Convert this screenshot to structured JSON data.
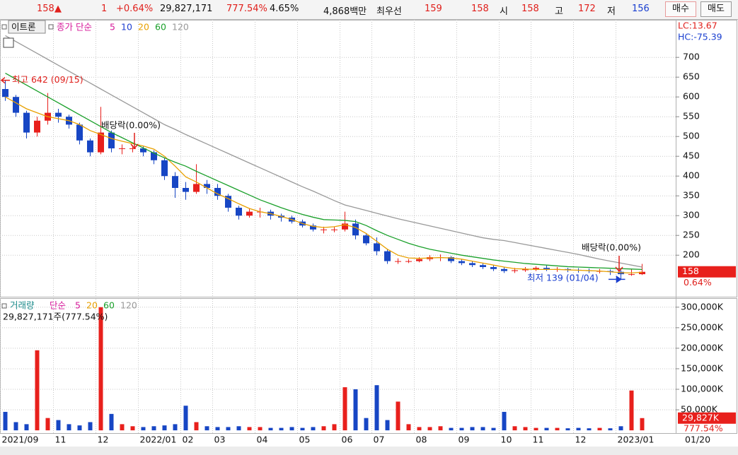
{
  "header": {
    "price": "158",
    "arrow": "▲",
    "change": "1",
    "change_pct": "+0.64%",
    "volume": "29,827,171",
    "volume_ratio": "777.54%",
    "turnover": "4.65%",
    "amount": "4,868백만",
    "best_label": "최우선",
    "best_ask": "159",
    "best_bid": "158",
    "open_label": "시",
    "open": "158",
    "high_label": "고",
    "high": "172",
    "low_label": "저",
    "low": "156",
    "buy": "매수",
    "sell": "매도"
  },
  "chart_data": [
    {
      "type": "candlestick",
      "stock_name": "이트론",
      "legend_label": "종가 단순",
      "up_color": "#e8201c",
      "down_color": "#1746c4",
      "open": [
        620,
        600,
        560,
        510,
        540,
        560,
        550,
        530,
        490,
        460,
        510,
        470,
        470,
        470,
        460,
        440,
        400,
        370,
        360,
        380,
        370,
        350,
        320,
        300,
        310,
        310,
        300,
        295,
        285,
        275,
        265,
        265,
        265,
        280,
        250,
        230,
        210,
        185,
        185,
        185,
        190,
        195,
        195,
        185,
        180,
        175,
        170,
        165,
        160,
        162,
        165,
        168,
        165,
        165,
        163,
        162,
        160,
        160,
        158,
        152,
        152
      ],
      "high": [
        642,
        605,
        565,
        550,
        610,
        570,
        555,
        535,
        495,
        575,
        515,
        480,
        478,
        475,
        465,
        445,
        410,
        385,
        430,
        390,
        380,
        355,
        325,
        318,
        320,
        315,
        305,
        300,
        290,
        280,
        272,
        272,
        310,
        290,
        255,
        245,
        215,
        192,
        190,
        195,
        200,
        202,
        198,
        190,
        185,
        180,
        175,
        170,
        168,
        170,
        172,
        174,
        170,
        168,
        167,
        166,
        165,
        164,
        162,
        165,
        178
      ],
      "low": [
        590,
        550,
        495,
        500,
        530,
        535,
        520,
        480,
        450,
        455,
        460,
        455,
        460,
        450,
        430,
        390,
        345,
        340,
        355,
        355,
        340,
        310,
        290,
        295,
        295,
        290,
        285,
        280,
        270,
        260,
        255,
        258,
        260,
        240,
        225,
        200,
        178,
        178,
        180,
        182,
        185,
        185,
        180,
        175,
        170,
        165,
        160,
        155,
        155,
        158,
        160,
        160,
        158,
        157,
        156,
        155,
        154,
        150,
        139,
        148,
        150
      ],
      "close": [
        600,
        560,
        510,
        540,
        560,
        550,
        530,
        490,
        460,
        510,
        470,
        470,
        470,
        460,
        440,
        400,
        370,
        360,
        380,
        370,
        350,
        320,
        300,
        310,
        310,
        300,
        295,
        285,
        275,
        265,
        265,
        265,
        280,
        250,
        230,
        210,
        185,
        185,
        185,
        190,
        195,
        195,
        185,
        180,
        175,
        170,
        165,
        160,
        162,
        165,
        168,
        165,
        165,
        163,
        162,
        160,
        160,
        158,
        152,
        152,
        158
      ],
      "series": [
        {
          "name": "5",
          "color": "#d6199a"
        },
        {
          "name": "10",
          "color": "#1f3fd0"
        },
        {
          "name": "20",
          "color": "#e8a000",
          "values": [
            600,
            585,
            570,
            560,
            550,
            545,
            540,
            530,
            515,
            505,
            495,
            488,
            482,
            476,
            468,
            450,
            425,
            398,
            385,
            370,
            355,
            343,
            330,
            318,
            310,
            305,
            298,
            290,
            280,
            273,
            270,
            272,
            277,
            270,
            255,
            235,
            215,
            200,
            193,
            192,
            193,
            194,
            193,
            190,
            185,
            180,
            175,
            170,
            166,
            165,
            164,
            164,
            164,
            163,
            162,
            161,
            160,
            158,
            156,
            155,
            157
          ]
        },
        {
          "name": "60",
          "color": "#1aa02a",
          "values": [
            660,
            645,
            630,
            615,
            600,
            585,
            570,
            555,
            540,
            525,
            510,
            497,
            484,
            471,
            458,
            446,
            435,
            425,
            412,
            400,
            388,
            376,
            364,
            352,
            340,
            330,
            320,
            311,
            303,
            296,
            290,
            289,
            288,
            285,
            275,
            262,
            250,
            240,
            230,
            222,
            215,
            210,
            205,
            200,
            196,
            192,
            188,
            185,
            182,
            179,
            177,
            175,
            173,
            171,
            170,
            169,
            168,
            167,
            166,
            165,
            164
          ]
        },
        {
          "name": "120",
          "color": "#999999",
          "values": [
            755,
            740,
            725,
            710,
            695,
            680,
            665,
            650,
            635,
            620,
            605,
            590,
            575,
            560,
            545,
            530,
            518,
            505,
            493,
            481,
            469,
            457,
            445,
            433,
            421,
            409,
            397,
            385,
            373,
            362,
            350,
            338,
            327,
            320,
            313,
            306,
            299,
            292,
            286,
            280,
            274,
            268,
            262,
            256,
            250,
            244,
            240,
            237,
            232,
            227,
            222,
            217,
            212,
            207,
            202,
            196,
            190,
            185,
            180,
            175,
            170
          ]
        }
      ],
      "ylim": [
        95,
        795
      ],
      "yticks": [
        200,
        250,
        300,
        350,
        400,
        450,
        500,
        550,
        600,
        650,
        700
      ],
      "grid": true,
      "lc_label": "LC:13.67",
      "hc_label": "HC:-75.39",
      "annotations": [
        "최고 642 (09/15)",
        "배당락(0.00%)",
        "배당락(0.00%)",
        "최저 139 (01/04)"
      ],
      "last_price": "158",
      "last_change": "0.64%"
    },
    {
      "type": "bar",
      "legend_label": "거래량",
      "legend_sub": "단순",
      "series": [
        {
          "name": "5",
          "color": "#d6199a"
        },
        {
          "name": "20",
          "color": "#e8a000"
        },
        {
          "name": "60",
          "color": "#1aa02a"
        },
        {
          "name": "120",
          "color": "#999999"
        }
      ],
      "values": [
        45000,
        20000,
        15000,
        195000,
        30000,
        25000,
        15000,
        12000,
        20000,
        300000,
        40000,
        15000,
        10000,
        8000,
        10000,
        12000,
        15000,
        60000,
        20000,
        10000,
        8000,
        8000,
        10000,
        8000,
        8000,
        6000,
        6000,
        8000,
        6000,
        8000,
        10000,
        15000,
        105000,
        100000,
        30000,
        110000,
        25000,
        70000,
        15000,
        8000,
        8000,
        10000,
        6000,
        6000,
        8000,
        8000,
        6000,
        45000,
        10000,
        8000,
        6000,
        6000,
        6000,
        5000,
        6000,
        5000,
        6000,
        5000,
        10000,
        97000,
        29827
      ],
      "categories": [
        "2021/09",
        null,
        null,
        null,
        null,
        "11",
        null,
        null,
        null,
        "12",
        null,
        null,
        null,
        "2022/01",
        null,
        null,
        null,
        "02",
        null,
        null,
        "03",
        null,
        null,
        null,
        "04",
        null,
        null,
        null,
        "05",
        null,
        null,
        null,
        "06",
        null,
        null,
        "07",
        null,
        null,
        null,
        "08",
        null,
        null,
        null,
        "09",
        null,
        null,
        null,
        "10",
        null,
        null,
        "11",
        null,
        null,
        null,
        "12",
        null,
        null,
        null,
        "2023/01",
        null,
        null
      ],
      "x_last_label": "01/20",
      "ylim": [
        -5000,
        322000
      ],
      "yticks": [
        {
          "value": 50000,
          "label": "50,000K"
        },
        {
          "value": 100000,
          "label": "100,000K"
        },
        {
          "value": 150000,
          "label": "150,000K"
        },
        {
          "value": 200000,
          "label": "200,000K"
        },
        {
          "value": 250000,
          "label": "250,000K"
        },
        {
          "value": 300000,
          "label": "300,000K"
        }
      ],
      "grid": true,
      "info": "29,827,171주(777.54%)",
      "last_tag": "29,827K",
      "last_pct": "777.54%"
    }
  ]
}
